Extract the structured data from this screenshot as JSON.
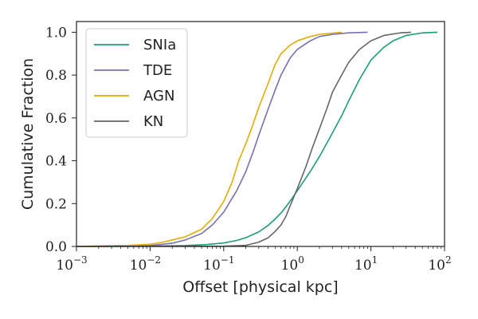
{
  "chart_data": {
    "type": "line",
    "title": "",
    "xlabel": "Offset [physical kpc]",
    "ylabel": "Cumulative Fraction",
    "xscale": "log",
    "xlim": [
      0.001,
      100
    ],
    "ylim": [
      0.0,
      1.05
    ],
    "x_ticks": [
      {
        "value": 0.001,
        "base": "10",
        "exp": "−3"
      },
      {
        "value": 0.01,
        "base": "10",
        "exp": "−2"
      },
      {
        "value": 0.1,
        "base": "10",
        "exp": "−1"
      },
      {
        "value": 1,
        "base": "10",
        "exp": "0"
      },
      {
        "value": 10,
        "base": "10",
        "exp": "1"
      },
      {
        "value": 100,
        "base": "10",
        "exp": "2"
      }
    ],
    "y_ticks": [
      {
        "value": 0.0,
        "label": "0.0"
      },
      {
        "value": 0.2,
        "label": "0.2"
      },
      {
        "value": 0.4,
        "label": "0.4"
      },
      {
        "value": 0.6,
        "label": "0.6"
      },
      {
        "value": 0.8,
        "label": "0.8"
      },
      {
        "value": 1.0,
        "label": "1.0"
      }
    ],
    "legend_position": "top-left",
    "grid": false,
    "series": [
      {
        "name": "SNIa",
        "color": "#1b9e77",
        "points": [
          [
            0.001,
            0.0
          ],
          [
            0.01,
            0.001
          ],
          [
            0.03,
            0.004
          ],
          [
            0.06,
            0.009
          ],
          [
            0.1,
            0.016
          ],
          [
            0.15,
            0.028
          ],
          [
            0.2,
            0.041
          ],
          [
            0.3,
            0.068
          ],
          [
            0.4,
            0.098
          ],
          [
            0.5,
            0.128
          ],
          [
            0.6,
            0.156
          ],
          [
            0.7,
            0.185
          ],
          [
            0.8,
            0.212
          ],
          [
            1.0,
            0.26
          ],
          [
            1.5,
            0.35
          ],
          [
            2.0,
            0.42
          ],
          [
            3.0,
            0.53
          ],
          [
            4.0,
            0.61
          ],
          [
            5.0,
            0.68
          ],
          [
            7.0,
            0.78
          ],
          [
            10.0,
            0.87
          ],
          [
            15.0,
            0.93
          ],
          [
            20.0,
            0.96
          ],
          [
            30.0,
            0.985
          ],
          [
            50.0,
            0.997
          ],
          [
            80.0,
            1.0
          ]
        ]
      },
      {
        "name": "TDE",
        "color": "#7570b3",
        "points": [
          [
            0.001,
            0.0
          ],
          [
            0.005,
            0.001
          ],
          [
            0.01,
            0.004
          ],
          [
            0.02,
            0.015
          ],
          [
            0.03,
            0.03
          ],
          [
            0.05,
            0.06
          ],
          [
            0.07,
            0.1
          ],
          [
            0.1,
            0.16
          ],
          [
            0.15,
            0.26
          ],
          [
            0.2,
            0.35
          ],
          [
            0.25,
            0.44
          ],
          [
            0.3,
            0.52
          ],
          [
            0.4,
            0.64
          ],
          [
            0.5,
            0.73
          ],
          [
            0.6,
            0.8
          ],
          [
            0.8,
            0.88
          ],
          [
            1.0,
            0.92
          ],
          [
            1.5,
            0.96
          ],
          [
            2.0,
            0.98
          ],
          [
            3.0,
            0.99
          ],
          [
            5.0,
            0.997
          ],
          [
            9.0,
            1.0
          ]
        ]
      },
      {
        "name": "AGN",
        "color": "#e6ab02",
        "points": [
          [
            0.001,
            0.0
          ],
          [
            0.005,
            0.005
          ],
          [
            0.01,
            0.01
          ],
          [
            0.015,
            0.02
          ],
          [
            0.02,
            0.03
          ],
          [
            0.03,
            0.045
          ],
          [
            0.05,
            0.08
          ],
          [
            0.07,
            0.13
          ],
          [
            0.1,
            0.21
          ],
          [
            0.13,
            0.3
          ],
          [
            0.16,
            0.4
          ],
          [
            0.2,
            0.48
          ],
          [
            0.25,
            0.57
          ],
          [
            0.3,
            0.65
          ],
          [
            0.4,
            0.76
          ],
          [
            0.5,
            0.85
          ],
          [
            0.6,
            0.9
          ],
          [
            0.8,
            0.94
          ],
          [
            1.0,
            0.96
          ],
          [
            1.5,
            0.98
          ],
          [
            2.0,
            0.99
          ],
          [
            4.0,
            1.0
          ]
        ]
      },
      {
        "name": "KN",
        "color": "#666666",
        "points": [
          [
            0.001,
            0.0
          ],
          [
            0.1,
            0.001
          ],
          [
            0.2,
            0.005
          ],
          [
            0.3,
            0.02
          ],
          [
            0.4,
            0.04
          ],
          [
            0.5,
            0.07
          ],
          [
            0.6,
            0.1
          ],
          [
            0.7,
            0.14
          ],
          [
            0.8,
            0.19
          ],
          [
            1.0,
            0.27
          ],
          [
            1.3,
            0.37
          ],
          [
            1.6,
            0.46
          ],
          [
            2.0,
            0.55
          ],
          [
            2.5,
            0.64
          ],
          [
            3.0,
            0.72
          ],
          [
            4.0,
            0.8
          ],
          [
            5.0,
            0.86
          ],
          [
            7.0,
            0.92
          ],
          [
            10.0,
            0.96
          ],
          [
            15.0,
            0.985
          ],
          [
            25.0,
            0.997
          ],
          [
            35.0,
            1.0
          ]
        ]
      }
    ]
  }
}
